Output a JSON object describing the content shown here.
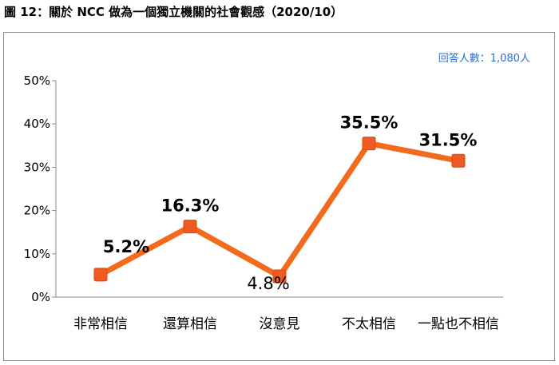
{
  "figure_title": "圖 12：關於 NCC 做為一個獨立機關的社會觀感（2020/10）",
  "respondents_note": "回答人數：1,080人",
  "colors": {
    "line": "#f26b1d",
    "marker": "#ee5a1f",
    "frame": "#888888",
    "axis": "#8a8a8a",
    "respondents_text": "#2e6fce"
  },
  "chart_data": {
    "type": "line",
    "title": "",
    "xlabel": "",
    "ylabel": "",
    "categories": [
      "非常相信",
      "還算相信",
      "沒意見",
      "不太相信",
      "一點也不相信"
    ],
    "values": [
      5.2,
      16.3,
      4.8,
      35.5,
      31.5
    ],
    "data_labels": [
      "5.2%",
      "16.3%",
      "4.8%",
      "35.5%",
      "31.5%"
    ],
    "y_ticks": [
      "0%",
      "10%",
      "20%",
      "30%",
      "40%",
      "50%"
    ],
    "ylim": [
      0,
      50
    ],
    "grid": false,
    "legend": "none"
  }
}
